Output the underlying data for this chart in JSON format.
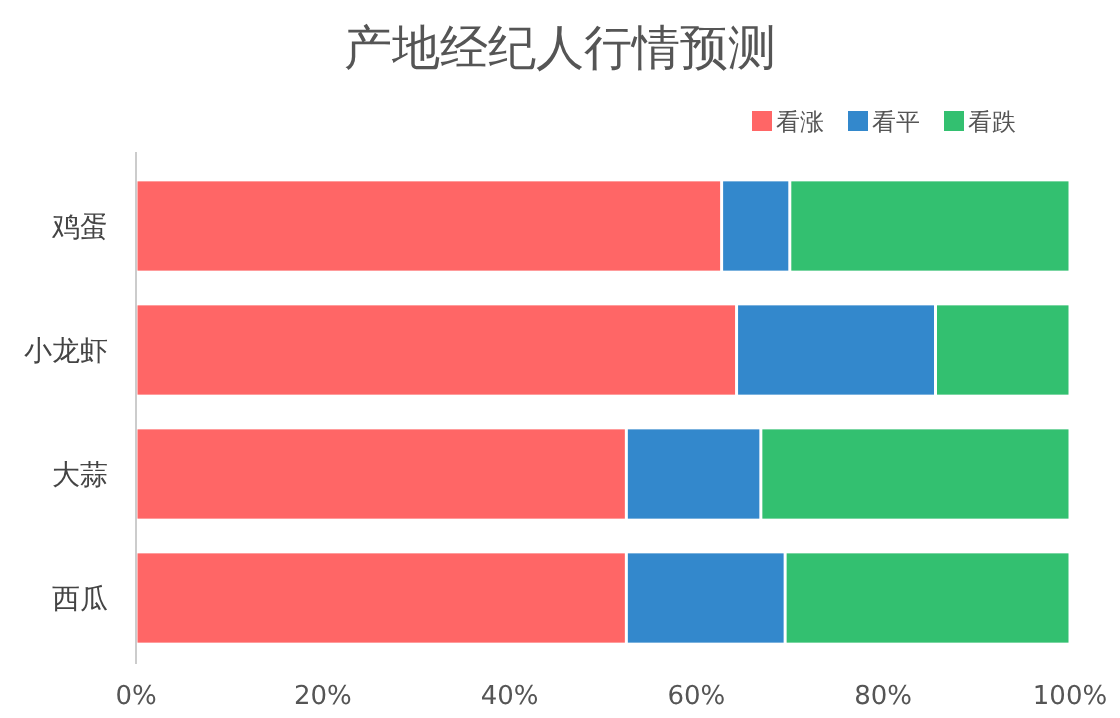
{
  "chart_data": {
    "type": "bar",
    "title": "产地经纪人行情预测",
    "orientation": "horizontal",
    "stacked": true,
    "categories": [
      "鸡蛋",
      "小龙虾",
      "大蒜",
      "西瓜"
    ],
    "series": [
      {
        "name": "看涨",
        "color": "#ff6666",
        "values": [
          62.7,
          64.3,
          52.5,
          52.5
        ]
      },
      {
        "name": "看平",
        "color": "#3388cc",
        "values": [
          7.3,
          21.3,
          14.4,
          17
        ]
      },
      {
        "name": "看跌",
        "color": "#33c070",
        "values": [
          30,
          14.4,
          33.1,
          30.5
        ]
      }
    ],
    "xlim": [
      0,
      100
    ],
    "xticks": [
      {
        "value": 0,
        "label": "0%"
      },
      {
        "value": 20,
        "label": "20%"
      },
      {
        "value": 40,
        "label": "40%"
      },
      {
        "value": 60,
        "label": "60%"
      },
      {
        "value": 80,
        "label": "80%"
      },
      {
        "value": 100,
        "label": "100%"
      }
    ],
    "legend": "top right",
    "grid": false
  }
}
